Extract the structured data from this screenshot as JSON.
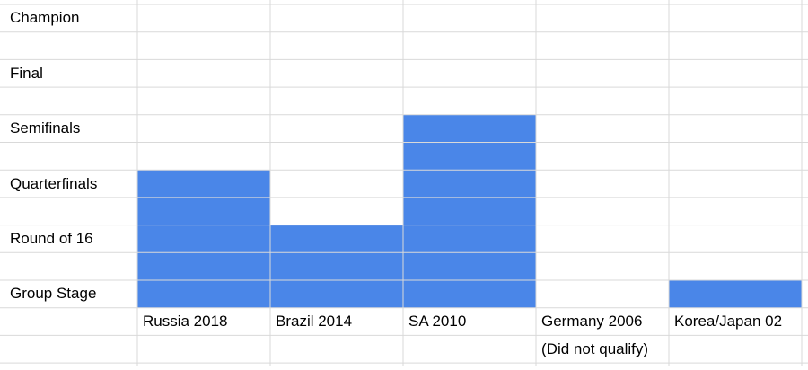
{
  "chart_data": {
    "type": "bar",
    "style": "spreadsheet-cell-fill",
    "bar_color": "#4a86e8",
    "grid_color": "#d9d9d9",
    "y_levels": [
      "Group Stage",
      "Round of 16",
      "Quarterfinals",
      "Semifinals",
      "Final",
      "Champion"
    ],
    "categories": [
      "Russia 2018",
      "Brazil 2014",
      "SA 2010",
      "Germany 2006",
      "Korea/Japan 02"
    ],
    "category_notes": [
      "",
      "",
      "",
      "(Did not qualify)",
      ""
    ],
    "values": [
      3,
      2,
      4,
      0,
      1
    ],
    "value_labels": [
      "Quarterfinals",
      "Round of 16",
      "Semifinals",
      "",
      "Group Stage"
    ],
    "grid": true,
    "legend": "none"
  }
}
